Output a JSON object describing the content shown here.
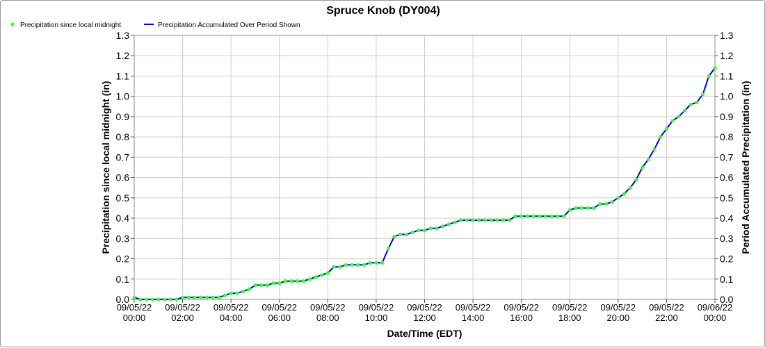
{
  "chart_data": {
    "type": "line",
    "title": "Spruce Knob (DY004)",
    "xlabel": "Date/Time (EDT)",
    "ylabel_left": "Precipitation since local midnight (in)",
    "ylabel_right": "Period Accumulated Precipitation (in)",
    "ylim": [
      0,
      1.3
    ],
    "yticks": [
      "0.0",
      "0.1",
      "0.2",
      "0.3",
      "0.4",
      "0.5",
      "0.6",
      "0.7",
      "0.8",
      "0.9",
      "1.0",
      "1.1",
      "1.2",
      "1.3"
    ],
    "xlim_hours": [
      0,
      24
    ],
    "xticks": [
      {
        "date": "09/05/22",
        "time": "00:00"
      },
      {
        "date": "09/05/22",
        "time": "02:00"
      },
      {
        "date": "09/05/22",
        "time": "04:00"
      },
      {
        "date": "09/05/22",
        "time": "06:00"
      },
      {
        "date": "09/05/22",
        "time": "08:00"
      },
      {
        "date": "09/05/22",
        "time": "10:00"
      },
      {
        "date": "09/05/22",
        "time": "12:00"
      },
      {
        "date": "09/05/22",
        "time": "14:00"
      },
      {
        "date": "09/05/22",
        "time": "16:00"
      },
      {
        "date": "09/05/22",
        "time": "18:00"
      },
      {
        "date": "09/05/22",
        "time": "20:00"
      },
      {
        "date": "09/05/22",
        "time": "22:00"
      },
      {
        "date": "09/06/22",
        "time": "00:00"
      }
    ],
    "grid": true,
    "legend_position": "top-left",
    "series": [
      {
        "name": "Precipitation since local midnight",
        "style": "markers",
        "color": "#33ff33",
        "x_unit": "hours since 09/05/22 00:00"
      },
      {
        "name": "Precipitation Accumulated Over Period Shown",
        "style": "line",
        "color": "#0000cc"
      }
    ],
    "points": [
      [
        0.0,
        0.01
      ],
      [
        0.25,
        0.0
      ],
      [
        0.5,
        0.0
      ],
      [
        0.75,
        0.0
      ],
      [
        1.0,
        0.0
      ],
      [
        1.25,
        0.0
      ],
      [
        1.5,
        0.0
      ],
      [
        1.75,
        0.0
      ],
      [
        2.0,
        0.01
      ],
      [
        2.25,
        0.01
      ],
      [
        2.5,
        0.01
      ],
      [
        2.75,
        0.01
      ],
      [
        3.0,
        0.01
      ],
      [
        3.25,
        0.01
      ],
      [
        3.5,
        0.01
      ],
      [
        3.75,
        0.02
      ],
      [
        4.0,
        0.03
      ],
      [
        4.25,
        0.03
      ],
      [
        4.5,
        0.04
      ],
      [
        4.75,
        0.05
      ],
      [
        5.0,
        0.07
      ],
      [
        5.25,
        0.07
      ],
      [
        5.5,
        0.07
      ],
      [
        5.75,
        0.08
      ],
      [
        6.0,
        0.08
      ],
      [
        6.25,
        0.09
      ],
      [
        6.5,
        0.09
      ],
      [
        6.75,
        0.09
      ],
      [
        7.0,
        0.09
      ],
      [
        7.25,
        0.1
      ],
      [
        7.5,
        0.11
      ],
      [
        7.75,
        0.12
      ],
      [
        8.0,
        0.13
      ],
      [
        8.25,
        0.16
      ],
      [
        8.5,
        0.16
      ],
      [
        8.75,
        0.17
      ],
      [
        9.0,
        0.17
      ],
      [
        9.25,
        0.17
      ],
      [
        9.5,
        0.17
      ],
      [
        9.75,
        0.18
      ],
      [
        10.0,
        0.18
      ],
      [
        10.25,
        0.18
      ],
      [
        10.5,
        0.25
      ],
      [
        10.75,
        0.31
      ],
      [
        11.0,
        0.32
      ],
      [
        11.25,
        0.32
      ],
      [
        11.5,
        0.33
      ],
      [
        11.75,
        0.34
      ],
      [
        12.0,
        0.34
      ],
      [
        12.25,
        0.35
      ],
      [
        12.5,
        0.35
      ],
      [
        12.75,
        0.36
      ],
      [
        13.0,
        0.37
      ],
      [
        13.25,
        0.38
      ],
      [
        13.5,
        0.39
      ],
      [
        13.75,
        0.39
      ],
      [
        14.0,
        0.39
      ],
      [
        14.25,
        0.39
      ],
      [
        14.5,
        0.39
      ],
      [
        14.75,
        0.39
      ],
      [
        15.0,
        0.39
      ],
      [
        15.25,
        0.39
      ],
      [
        15.5,
        0.39
      ],
      [
        15.75,
        0.41
      ],
      [
        16.0,
        0.41
      ],
      [
        16.25,
        0.41
      ],
      [
        16.5,
        0.41
      ],
      [
        16.75,
        0.41
      ],
      [
        17.0,
        0.41
      ],
      [
        17.25,
        0.41
      ],
      [
        17.5,
        0.41
      ],
      [
        17.75,
        0.41
      ],
      [
        18.0,
        0.44
      ],
      [
        18.25,
        0.45
      ],
      [
        18.5,
        0.45
      ],
      [
        18.75,
        0.45
      ],
      [
        19.0,
        0.45
      ],
      [
        19.25,
        0.47
      ],
      [
        19.5,
        0.47
      ],
      [
        19.75,
        0.48
      ],
      [
        20.0,
        0.5
      ],
      [
        20.25,
        0.52
      ],
      [
        20.5,
        0.55
      ],
      [
        20.75,
        0.59
      ],
      [
        21.0,
        0.65
      ],
      [
        21.25,
        0.69
      ],
      [
        21.5,
        0.74
      ],
      [
        21.75,
        0.8
      ],
      [
        22.0,
        0.84
      ],
      [
        22.25,
        0.88
      ],
      [
        22.5,
        0.9
      ],
      [
        22.75,
        0.93
      ],
      [
        23.0,
        0.96
      ],
      [
        23.25,
        0.97
      ],
      [
        23.5,
        1.01
      ],
      [
        23.75,
        1.1
      ],
      [
        24.0,
        1.14
      ]
    ]
  }
}
